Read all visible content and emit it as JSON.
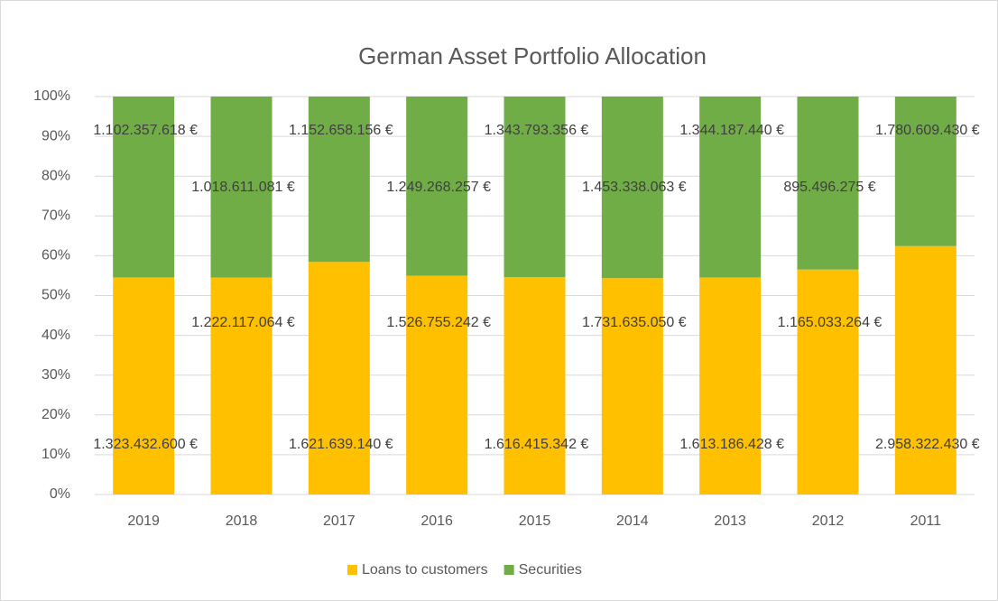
{
  "chart_data": {
    "type": "bar",
    "stacked": "percent",
    "title": "German Asset Portfolio Allocation",
    "categories": [
      "2019",
      "2018",
      "2017",
      "2016",
      "2015",
      "2014",
      "2013",
      "2012",
      "2011"
    ],
    "series": [
      {
        "name": "Loans to customers",
        "color": "#ffc000",
        "values": [
          1323432600,
          1222117064,
          1621639140,
          1526755242,
          1616415342,
          1731635050,
          1613186428,
          1165033264,
          2958322430
        ],
        "value_labels": [
          "1.323.432.600 €",
          "1.222.117.064 €",
          "1.621.639.140 €",
          "1.526.755.242 €",
          "1.616.415.342 €",
          "1.731.635.050 €",
          "1.613.186.428 €",
          "1.165.033.264 €",
          "2.958.322.430 €"
        ]
      },
      {
        "name": "Securities",
        "color": "#70ad47",
        "values": [
          1102357618,
          1018611081,
          1152658156,
          1249268257,
          1343793356,
          1453338063,
          1344187440,
          895496275,
          1780609430
        ],
        "value_labels": [
          "1.102.357.618 €",
          "1.018.611.081 €",
          "1.152.658.156 €",
          "1.249.268.257 €",
          "1.343.793.356 €",
          "1.453.338.063 €",
          "1.344.187.440 €",
          "895.496.275 €",
          "1.780.609.430 €"
        ]
      }
    ],
    "ylim": [
      0,
      100
    ],
    "yticks": [
      {
        "value": 0,
        "label": "0%"
      },
      {
        "value": 10,
        "label": "10%"
      },
      {
        "value": 20,
        "label": "20%"
      },
      {
        "value": 30,
        "label": "30%"
      },
      {
        "value": 40,
        "label": "40%"
      },
      {
        "value": 50,
        "label": "50%"
      },
      {
        "value": 60,
        "label": "60%"
      },
      {
        "value": 70,
        "label": "70%"
      },
      {
        "value": 80,
        "label": "80%"
      },
      {
        "value": 90,
        "label": "90%"
      },
      {
        "value": 100,
        "label": "100%"
      }
    ],
    "grid": true,
    "legend": "bottom"
  }
}
